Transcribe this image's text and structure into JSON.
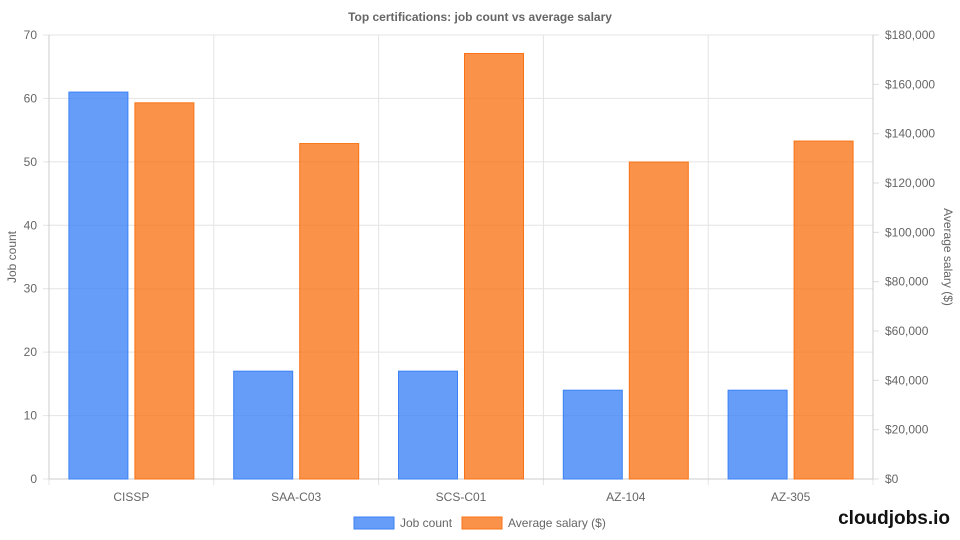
{
  "chart_data": {
    "type": "bar",
    "title": "Top certifications: job count vs average salary",
    "categories": [
      "CISSP",
      "SAA-C03",
      "SCS-C01",
      "AZ-104",
      "AZ-305"
    ],
    "series": [
      {
        "name": "Job count",
        "axis": "left",
        "values": [
          61,
          17,
          17,
          14,
          14
        ],
        "color": "#3b82f6"
      },
      {
        "name": "Average salary ($)",
        "axis": "right",
        "values": [
          152500,
          136000,
          172500,
          128500,
          137000
        ],
        "color": "#f97316"
      }
    ],
    "ylabel": "Job count",
    "ylim": [
      0,
      70
    ],
    "yticks": [
      0,
      10,
      20,
      30,
      40,
      50,
      60,
      70
    ],
    "y2label": "Average salary ($)",
    "y2lim": [
      0,
      180000
    ],
    "y2ticks": [
      "$0",
      "$20,000",
      "$40,000",
      "$60,000",
      "$80,000",
      "$100,000",
      "$120,000",
      "$140,000",
      "$160,000",
      "$180,000"
    ],
    "grid": true,
    "legend": "bottom"
  },
  "brand": "cloudjobs.io"
}
